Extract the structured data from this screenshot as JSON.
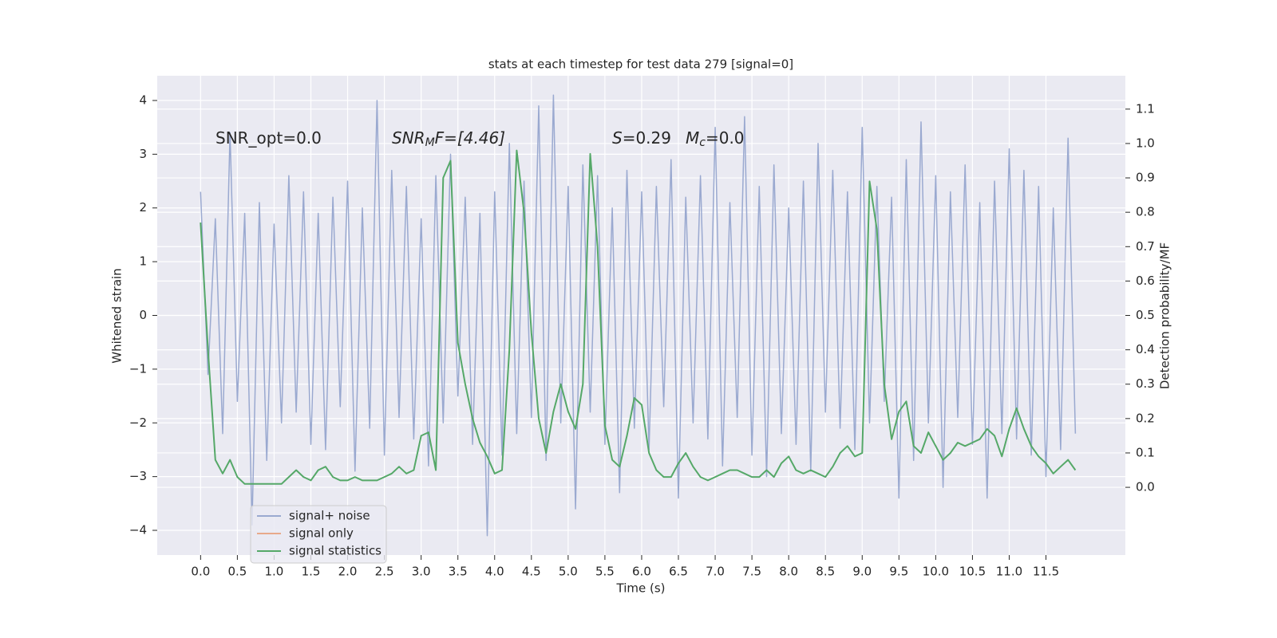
{
  "chart_data": {
    "type": "line",
    "title": "stats at each timestep for test data 279 [signal=0]",
    "x_label": "Time (s)",
    "y_label": "Whitened strain",
    "y2_label": "Detection probability/MF",
    "annotations": [
      [
        "SNR_opt=0.0"
      ],
      [
        "SNR",
        "M",
        "F=[4.46]"
      ],
      [
        "S",
        "=0.29",
        "M",
        "c",
        "=0.0"
      ]
    ],
    "x": [
      0.0,
      0.1,
      0.2,
      0.3,
      0.4,
      0.5,
      0.6,
      0.7,
      0.8,
      0.9,
      1.0,
      1.1,
      1.2,
      1.3,
      1.4,
      1.5,
      1.6,
      1.7,
      1.8,
      1.9,
      2.0,
      2.1,
      2.2,
      2.3,
      2.4,
      2.5,
      2.6,
      2.7,
      2.8,
      2.9,
      3.0,
      3.1,
      3.2,
      3.3,
      3.4,
      3.5,
      3.6,
      3.7,
      3.8,
      3.9,
      4.0,
      4.1,
      4.2,
      4.3,
      4.4,
      4.5,
      4.6,
      4.7,
      4.8,
      4.9,
      5.0,
      5.1,
      5.2,
      5.3,
      5.4,
      5.5,
      5.6,
      5.7,
      5.8,
      5.9,
      6.0,
      6.1,
      6.2,
      6.3,
      6.4,
      6.5,
      6.6,
      6.7,
      6.8,
      6.9,
      7.0,
      7.1,
      7.2,
      7.3,
      7.4,
      7.5,
      7.6,
      7.7,
      7.8,
      7.9,
      8.0,
      8.1,
      8.2,
      8.3,
      8.4,
      8.5,
      8.6,
      8.7,
      8.8,
      8.9,
      9.0,
      9.1,
      9.2,
      9.3,
      9.4,
      9.5,
      9.6,
      9.7,
      9.8,
      9.9,
      10.0,
      10.1,
      10.2,
      10.3,
      10.4,
      10.5,
      10.6,
      10.7,
      10.8,
      10.9,
      11.0,
      11.1,
      11.2,
      11.3,
      11.4,
      11.5,
      11.6,
      11.7,
      11.8,
      11.9
    ],
    "series": [
      {
        "name": "signal+ noise",
        "color": "#9aa9d0",
        "axis": "y",
        "values": [
          2.3,
          -1.1,
          1.8,
          -2.2,
          3.4,
          -1.6,
          1.9,
          -3.9,
          2.1,
          -2.7,
          1.7,
          -2.0,
          2.6,
          -1.8,
          2.3,
          -2.4,
          1.9,
          -2.5,
          2.2,
          -1.7,
          2.5,
          -2.9,
          2.0,
          -2.1,
          4.0,
          -2.6,
          2.7,
          -1.9,
          2.4,
          -2.3,
          1.8,
          -2.8,
          2.6,
          -2.0,
          3.0,
          -1.5,
          2.2,
          -2.4,
          1.9,
          -4.1,
          2.3,
          -2.6,
          3.2,
          -2.2,
          2.5,
          -1.9,
          3.9,
          -2.7,
          4.1,
          -2.0,
          2.4,
          -3.6,
          2.8,
          -1.8,
          2.6,
          -2.4,
          2.0,
          -3.3,
          2.7,
          -2.1,
          2.3,
          -2.5,
          2.4,
          -1.7,
          2.9,
          -3.4,
          2.2,
          -2.0,
          2.6,
          -2.3,
          3.5,
          -2.8,
          2.1,
          -1.9,
          3.7,
          -2.6,
          2.4,
          -3.0,
          2.8,
          -2.2,
          2.0,
          -2.4,
          2.5,
          -2.9,
          3.2,
          -1.8,
          2.7,
          -2.1,
          2.3,
          -2.5,
          3.5,
          -2.0,
          2.4,
          -1.6,
          2.2,
          -3.4,
          2.9,
          -2.7,
          3.6,
          -2.0,
          2.6,
          -3.2,
          2.3,
          -1.9,
          2.8,
          -2.4,
          2.1,
          -3.4,
          2.5,
          -2.2,
          3.1,
          -2.3,
          2.7,
          -2.6,
          2.4,
          -3.0,
          2.0,
          -2.5,
          3.3,
          -2.2
        ]
      },
      {
        "name": "signal only",
        "color": "#e8a98a",
        "axis": "y",
        "values": [
          null,
          null,
          null,
          null,
          null,
          null,
          null,
          null,
          null,
          null,
          null,
          null,
          null,
          null,
          null,
          null,
          null,
          null,
          null,
          null,
          null,
          null,
          null,
          null,
          null,
          null,
          null,
          null,
          null,
          null,
          null,
          null,
          null,
          null,
          null,
          null,
          null,
          null,
          null,
          null,
          null,
          null,
          null,
          null,
          null,
          null,
          null,
          null,
          null,
          null,
          null,
          null,
          null,
          null,
          null,
          null,
          null,
          null,
          null,
          null,
          null,
          null,
          null,
          null,
          null,
          null,
          null,
          null,
          null,
          null,
          null,
          null,
          null,
          null,
          null,
          null,
          null,
          null,
          null,
          null,
          null,
          null,
          null,
          null,
          null,
          null,
          null,
          null,
          null,
          null,
          null,
          null,
          null,
          null,
          null,
          null,
          null,
          null,
          null,
          null,
          null,
          null,
          null,
          null,
          null,
          null,
          null,
          null,
          null,
          null,
          null,
          null,
          null,
          null,
          null,
          null,
          null,
          null,
          null,
          null
        ]
      },
      {
        "name": "signal statistics",
        "color": "#55a868",
        "axis": "y2",
        "values": [
          0.77,
          0.4,
          0.08,
          0.04,
          0.08,
          0.03,
          0.01,
          0.01,
          0.01,
          0.01,
          0.01,
          0.01,
          0.03,
          0.05,
          0.03,
          0.02,
          0.05,
          0.06,
          0.03,
          0.02,
          0.02,
          0.03,
          0.02,
          0.02,
          0.02,
          0.03,
          0.04,
          0.06,
          0.04,
          0.05,
          0.15,
          0.16,
          0.05,
          0.9,
          0.95,
          0.42,
          0.3,
          0.2,
          0.13,
          0.09,
          0.04,
          0.05,
          0.4,
          0.98,
          0.8,
          0.45,
          0.2,
          0.1,
          0.22,
          0.3,
          0.22,
          0.17,
          0.3,
          0.97,
          0.7,
          0.18,
          0.08,
          0.06,
          0.15,
          0.26,
          0.24,
          0.1,
          0.05,
          0.03,
          0.03,
          0.07,
          0.1,
          0.06,
          0.03,
          0.02,
          0.03,
          0.04,
          0.05,
          0.05,
          0.04,
          0.03,
          0.03,
          0.05,
          0.03,
          0.07,
          0.09,
          0.05,
          0.04,
          0.05,
          0.04,
          0.03,
          0.06,
          0.1,
          0.12,
          0.09,
          0.1,
          0.89,
          0.75,
          0.3,
          0.14,
          0.22,
          0.25,
          0.12,
          0.1,
          0.16,
          0.12,
          0.08,
          0.1,
          0.13,
          0.12,
          0.13,
          0.14,
          0.17,
          0.15,
          0.09,
          0.17,
          0.23,
          0.17,
          0.12,
          0.09,
          0.07,
          0.04,
          0.06,
          0.08,
          0.05
        ]
      }
    ],
    "xlim": [
      -0.59,
      12.58
    ],
    "xticks": [
      {
        "value": 0,
        "label": "0.0"
      },
      0.5,
      {
        "value": 1,
        "label": "1.0"
      },
      1.5,
      {
        "value": 2,
        "label": "2.0"
      },
      2.5,
      {
        "value": 3,
        "label": "3.0"
      },
      3.5,
      {
        "value": 4,
        "label": "4.0"
      },
      4.5,
      {
        "value": 5,
        "label": "5.0"
      },
      5.5,
      {
        "value": 6,
        "label": "6.0"
      },
      6.5,
      {
        "value": 7,
        "label": "7.0"
      },
      7.5,
      {
        "value": 8,
        "label": "8.0"
      },
      8.5,
      {
        "value": 9,
        "label": "9.0"
      },
      9.5,
      {
        "value": 10,
        "label": "10.0"
      },
      10.5,
      {
        "value": 11,
        "label": "11.0"
      },
      11.5
    ],
    "ylim": [
      -4.46,
      4.46
    ],
    "yticks": [
      {
        "value": -4,
        "label": "−4"
      },
      {
        "value": -3,
        "label": "−3"
      },
      {
        "value": -2,
        "label": "−2"
      },
      {
        "value": -1,
        "label": "−1"
      },
      0,
      1,
      2,
      3,
      4
    ],
    "y2lim": [
      -0.197,
      1.197
    ],
    "y2ticks": [
      {
        "value": 0,
        "label": "0.0"
      },
      0.1,
      0.2,
      0.3,
      0.4,
      0.5,
      0.6,
      0.7,
      0.8,
      0.9,
      {
        "value": 1,
        "label": "1.0"
      },
      1.1
    ],
    "grid": true,
    "legend": "lower left"
  }
}
